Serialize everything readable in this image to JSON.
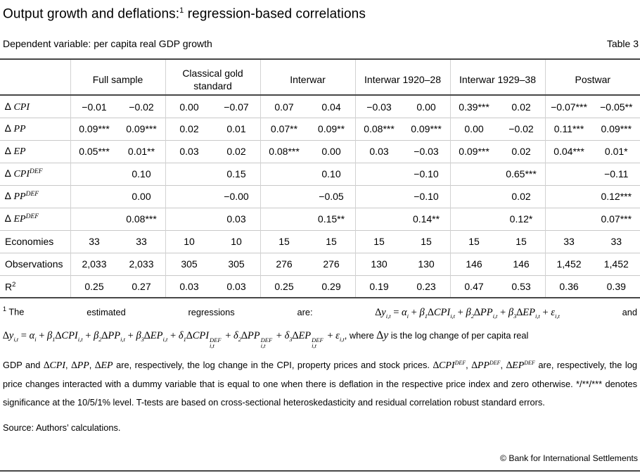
{
  "header": {
    "title_pre": "Output growth and deflations:",
    "title_mark": "1",
    "title_post": " regression-based correlations",
    "subtitle": "Dependent variable: per capita real GDP growth",
    "table_label": "Table 3"
  },
  "colors": {
    "dark_rule": "#474747",
    "light_rule": "#c9c9c9",
    "text": "#000000",
    "background": "#ffffff"
  },
  "chart_data": {
    "type": "table",
    "title": "Output growth and deflations: regression-based correlations",
    "dependent_variable": "per capita real GDP growth",
    "column_groups": [
      "Full sample",
      "Classical gold standard",
      "Interwar",
      "Interwar 1920–28",
      "Interwar 1929–38",
      "Postwar"
    ],
    "columns_per_group": 2,
    "rows": [
      {
        "label": [
          {
            "t": "∆ ",
            "s": "t"
          },
          {
            "t": "CPI",
            "s": "v"
          }
        ],
        "values": [
          "−0.01",
          "−0.02",
          "0.00",
          "−0.07",
          "0.07",
          "0.04",
          "−0.03",
          "0.00",
          "0.39***",
          "0.02",
          "−0.07***",
          "−0.05**"
        ]
      },
      {
        "label": [
          {
            "t": "∆ ",
            "s": "t"
          },
          {
            "t": "PP",
            "s": "v"
          }
        ],
        "values": [
          "0.09***",
          "0.09***",
          "0.02",
          "0.01",
          "0.07**",
          "0.09**",
          "0.08***",
          "0.09***",
          "0.00",
          "−0.02",
          "0.11***",
          "0.09***"
        ]
      },
      {
        "label": [
          {
            "t": "∆ ",
            "s": "t"
          },
          {
            "t": "EP",
            "s": "v"
          }
        ],
        "values": [
          "0.05***",
          "0.01**",
          "0.03",
          "0.02",
          "0.08***",
          "0.00",
          "0.03",
          "−0.03",
          "0.09***",
          "0.02",
          "0.04***",
          "0.01*"
        ]
      },
      {
        "label": [
          {
            "t": "∆ ",
            "s": "t"
          },
          {
            "t": "CPI",
            "s": "v"
          },
          {
            "t": "DEF",
            "s": "sup"
          }
        ],
        "values": [
          "",
          "0.10",
          "",
          "0.15",
          "",
          "0.10",
          "",
          "−0.10",
          "",
          "0.65***",
          "",
          "−0.11"
        ]
      },
      {
        "label": [
          {
            "t": "∆ ",
            "s": "t"
          },
          {
            "t": "PP",
            "s": "v"
          },
          {
            "t": "DEF",
            "s": "sup"
          }
        ],
        "values": [
          "",
          "0.00",
          "",
          "−0.00",
          "",
          "−0.05",
          "",
          "−0.10",
          "",
          "0.02",
          "",
          "0.12***"
        ]
      },
      {
        "label": [
          {
            "t": "∆ ",
            "s": "t"
          },
          {
            "t": "EP",
            "s": "v"
          },
          {
            "t": "DEF",
            "s": "sup"
          }
        ],
        "values": [
          "",
          "0.08***",
          "",
          "0.03",
          "",
          "0.15**",
          "",
          "0.14**",
          "",
          "0.12*",
          "",
          "0.07***"
        ]
      },
      {
        "label": [
          {
            "t": "Economies",
            "s": "t"
          }
        ],
        "values": [
          "33",
          "33",
          "10",
          "10",
          "15",
          "15",
          "15",
          "15",
          "15",
          "15",
          "33",
          "33"
        ]
      },
      {
        "label": [
          {
            "t": "Observations",
            "s": "t"
          }
        ],
        "values": [
          "2,033",
          "2,033",
          "305",
          "305",
          "276",
          "276",
          "130",
          "130",
          "146",
          "146",
          "1,452",
          "1,452"
        ]
      },
      {
        "label": [
          {
            "t": "R",
            "s": "t"
          },
          {
            "t": "2",
            "s": "supt"
          }
        ],
        "values": [
          "0.25",
          "0.27",
          "0.03",
          "0.03",
          "0.25",
          "0.29",
          "0.19",
          "0.23",
          "0.47",
          "0.53",
          "0.36",
          "0.39"
        ]
      }
    ]
  },
  "footnote": {
    "mark": "1",
    "w1": "The",
    "w2": "estimated",
    "w3": "regressions",
    "w4": "are:",
    "and_word": "and",
    "eq1": [
      {
        "t": "∆",
        "s": "m"
      },
      {
        "t": "y",
        "s": "v"
      },
      {
        "t": "i,t",
        "s": "sub"
      },
      {
        "t": " = ",
        "s": "m"
      },
      {
        "t": "α",
        "s": "v"
      },
      {
        "t": "i",
        "s": "sub"
      },
      {
        "t": " + ",
        "s": "m"
      },
      {
        "t": "β",
        "s": "v"
      },
      {
        "t": "1",
        "s": "sub"
      },
      {
        "t": "∆",
        "s": "m"
      },
      {
        "t": "CPI",
        "s": "v"
      },
      {
        "t": "i,t",
        "s": "sub"
      },
      {
        "t": " + ",
        "s": "m"
      },
      {
        "t": "β",
        "s": "v"
      },
      {
        "t": "2",
        "s": "sub"
      },
      {
        "t": "∆",
        "s": "m"
      },
      {
        "t": "PP",
        "s": "v"
      },
      {
        "t": "i,t",
        "s": "sub"
      },
      {
        "t": " + ",
        "s": "m"
      },
      {
        "t": "β",
        "s": "v"
      },
      {
        "t": "3",
        "s": "sub"
      },
      {
        "t": "∆",
        "s": "m"
      },
      {
        "t": "EP",
        "s": "v"
      },
      {
        "t": "i,t",
        "s": "sub"
      },
      {
        "t": " + ",
        "s": "m"
      },
      {
        "t": "ε",
        "s": "v"
      },
      {
        "t": "i,t",
        "s": "sub"
      }
    ],
    "line2": [
      {
        "t": "∆",
        "s": "m"
      },
      {
        "t": "y",
        "s": "v"
      },
      {
        "t": "i,t",
        "s": "sub"
      },
      {
        "t": " = ",
        "s": "m"
      },
      {
        "t": "α",
        "s": "v"
      },
      {
        "t": "i",
        "s": "sub"
      },
      {
        "t": " + ",
        "s": "m"
      },
      {
        "t": "β",
        "s": "v"
      },
      {
        "t": "1",
        "s": "sub"
      },
      {
        "t": "∆",
        "s": "m"
      },
      {
        "t": "CPI",
        "s": "v"
      },
      {
        "t": "i,t",
        "s": "sub"
      },
      {
        "t": " + ",
        "s": "m"
      },
      {
        "t": "β",
        "s": "v"
      },
      {
        "t": "2",
        "s": "sub"
      },
      {
        "t": "∆",
        "s": "m"
      },
      {
        "t": "PP",
        "s": "v"
      },
      {
        "t": "i,t",
        "s": "sub"
      },
      {
        "t": " + ",
        "s": "m"
      },
      {
        "t": "β",
        "s": "v"
      },
      {
        "t": "3",
        "s": "sub"
      },
      {
        "t": "∆",
        "s": "m"
      },
      {
        "t": "EP",
        "s": "v"
      },
      {
        "t": "i,t",
        "s": "sub"
      },
      {
        "t": " + ",
        "s": "m"
      },
      {
        "t": "δ",
        "s": "v"
      },
      {
        "t": "1",
        "s": "sub"
      },
      {
        "t": "∆",
        "s": "m"
      },
      {
        "t": "CPI",
        "s": "v"
      },
      {
        "a": "DEF",
        "b": "i,t",
        "s": "ss"
      },
      {
        "t": " + ",
        "s": "m"
      },
      {
        "t": "δ",
        "s": "v"
      },
      {
        "t": "2",
        "s": "sub"
      },
      {
        "t": "∆",
        "s": "m"
      },
      {
        "t": "PP",
        "s": "v"
      },
      {
        "a": "DEF",
        "b": "i,t",
        "s": "ss"
      },
      {
        "t": " + ",
        "s": "m"
      },
      {
        "t": "δ",
        "s": "v"
      },
      {
        "t": "3",
        "s": "sub"
      },
      {
        "t": "∆",
        "s": "m"
      },
      {
        "t": "EP",
        "s": "v"
      },
      {
        "a": "DEF",
        "b": "i,t",
        "s": "ss"
      },
      {
        "t": " + ",
        "s": "m"
      },
      {
        "t": "ε",
        "s": "v"
      },
      {
        "t": "i,t",
        "s": "sub"
      },
      {
        "t": ", ",
        "s": "t"
      },
      {
        "t": "where ",
        "s": "t"
      },
      {
        "t": "∆",
        "s": "mb"
      },
      {
        "t": "y",
        "s": "vb"
      },
      {
        "t": " is the log change of per capita real",
        "s": "t"
      }
    ],
    "para": [
      {
        "t": "GDP and ",
        "s": "t"
      },
      {
        "t": "∆",
        "s": "m"
      },
      {
        "t": "CPI",
        "s": "v"
      },
      {
        "t": ", ",
        "s": "t"
      },
      {
        "t": "∆",
        "s": "m"
      },
      {
        "t": "PP",
        "s": "v"
      },
      {
        "t": ", ",
        "s": "t"
      },
      {
        "t": "∆",
        "s": "m"
      },
      {
        "t": "EP",
        "s": "v"
      },
      {
        "t": " are, respectively, the log change in the CPI, property prices and stock prices. ",
        "s": "t"
      },
      {
        "t": "∆",
        "s": "m"
      },
      {
        "t": "CPI",
        "s": "v"
      },
      {
        "t": "DEF",
        "s": "sup"
      },
      {
        "t": ", ",
        "s": "t"
      },
      {
        "t": "∆",
        "s": "m"
      },
      {
        "t": "PP",
        "s": "v"
      },
      {
        "t": "DEF",
        "s": "sup"
      },
      {
        "t": ", ",
        "s": "t"
      },
      {
        "t": "∆",
        "s": "m"
      },
      {
        "t": "EP",
        "s": "v"
      },
      {
        "t": "DEF",
        "s": "sup"
      },
      {
        "t": " are, respectively, the log price changes interacted with a dummy variable that is equal to one when there is deflation in the respective price index and zero otherwise. */**/*** denotes significance at the 10/5/1% level. T-tests are based on cross-sectional heteroskedasticity and residual correlation robust standard errors.",
        "s": "t"
      }
    ]
  },
  "source_line": "Source: Authors’ calculations.",
  "copyright": "© Bank for International Settlements"
}
